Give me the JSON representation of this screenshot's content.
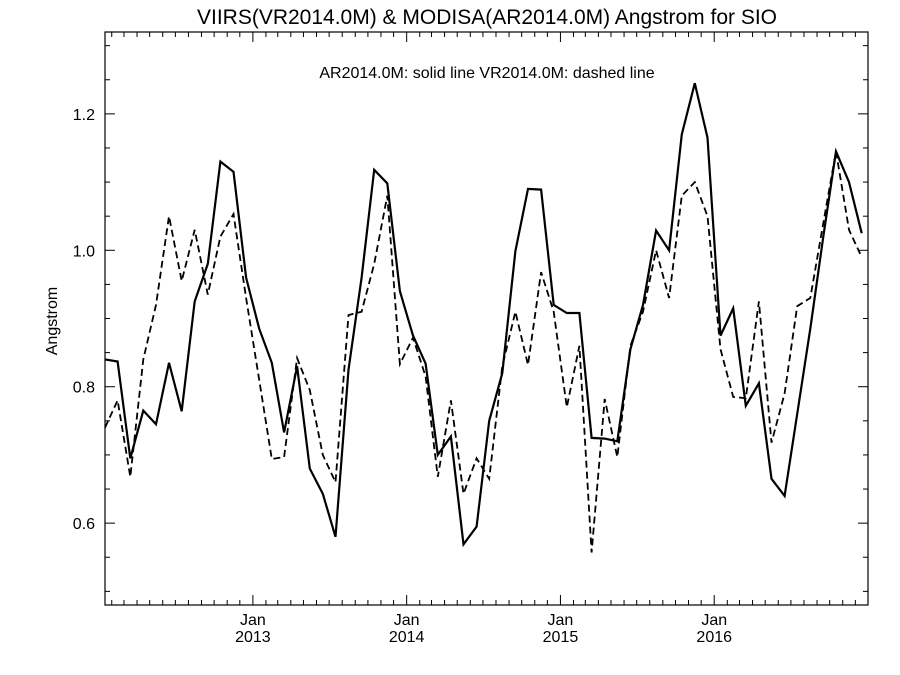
{
  "chart_data": {
    "type": "line",
    "title": "VIIRS(VR2014.0M) & MODISA(AR2014.0M)  Angstrom for SIO",
    "subtitle": "AR2014.0M: solid line   VR2014.0M: dashed line",
    "ylabel": "Angstrom",
    "xlabel": "",
    "xlim": [
      "2012-01-16",
      "2016-12-31"
    ],
    "ylim": [
      0.48,
      1.32
    ],
    "y_ticks": [
      0.6,
      0.8,
      1.0,
      1.2
    ],
    "y_tick_labels": [
      "0.6",
      "0.8",
      "1.0",
      "1.2"
    ],
    "x_ticks": [
      {
        "date": "2013-01-01",
        "month": "Jan",
        "year": "2013"
      },
      {
        "date": "2014-01-01",
        "month": "Jan",
        "year": "2014"
      },
      {
        "date": "2015-01-01",
        "month": "Jan",
        "year": "2015"
      },
      {
        "date": "2016-01-01",
        "month": "Jan",
        "year": "2016"
      }
    ],
    "grid": false,
    "series": [
      {
        "name": "AR2014.0M",
        "style": "solid",
        "color": "#000000",
        "x": [
          "2012-01-16",
          "2012-02-15",
          "2012-03-16",
          "2012-04-16",
          "2012-05-16",
          "2012-06-16",
          "2012-07-16",
          "2012-08-16",
          "2012-09-16",
          "2012-10-16",
          "2012-11-16",
          "2012-12-16",
          "2013-01-16",
          "2013-02-15",
          "2013-03-16",
          "2013-04-16",
          "2013-05-16",
          "2013-06-16",
          "2013-07-16",
          "2013-08-16",
          "2013-09-16",
          "2013-10-16",
          "2013-11-16",
          "2013-12-16",
          "2014-01-16",
          "2014-02-15",
          "2014-03-16",
          "2014-04-16",
          "2014-05-16",
          "2014-06-16",
          "2014-07-16",
          "2014-08-16",
          "2014-09-16",
          "2014-10-16",
          "2014-11-16",
          "2014-12-16",
          "2015-01-16",
          "2015-02-15",
          "2015-03-16",
          "2015-04-16",
          "2015-05-16",
          "2015-06-16",
          "2015-07-16",
          "2015-08-16",
          "2015-09-16",
          "2015-10-16",
          "2015-11-16",
          "2015-12-16",
          "2016-01-16",
          "2016-02-15",
          "2016-03-16",
          "2016-04-16",
          "2016-05-16",
          "2016-06-16",
          "2016-07-16",
          "2016-08-16",
          "2016-09-16",
          "2016-10-16",
          "2016-11-16",
          "2016-12-16"
        ],
        "values": [
          0.84,
          0.837,
          0.695,
          0.765,
          0.745,
          0.835,
          0.764,
          0.925,
          0.98,
          1.13,
          1.115,
          0.96,
          0.885,
          0.835,
          0.733,
          0.83,
          0.68,
          0.643,
          0.58,
          0.825,
          0.96,
          1.118,
          1.098,
          0.94,
          0.875,
          0.834,
          0.7,
          0.727,
          0.569,
          0.595,
          0.75,
          0.82,
          0.999,
          1.09,
          1.089,
          0.92,
          0.908,
          0.908,
          0.725,
          0.724,
          0.72,
          0.855,
          0.92,
          1.029,
          1.0,
          1.17,
          1.245,
          1.165,
          0.875,
          0.915,
          0.772,
          0.805,
          0.665,
          0.64,
          0.76,
          0.885,
          1.02,
          1.145,
          1.1,
          1.025
        ]
      },
      {
        "name": "VR2014.0M",
        "style": "dashed",
        "color": "#000000",
        "x": [
          "2012-01-16",
          "2012-02-15",
          "2012-03-16",
          "2012-04-16",
          "2012-05-16",
          "2012-06-16",
          "2012-07-16",
          "2012-08-16",
          "2012-09-16",
          "2012-10-16",
          "2012-11-16",
          "2012-12-16",
          "2013-01-16",
          "2013-02-15",
          "2013-03-16",
          "2013-04-16",
          "2013-05-16",
          "2013-06-16",
          "2013-07-16",
          "2013-08-16",
          "2013-09-16",
          "2013-10-16",
          "2013-11-16",
          "2013-12-16",
          "2014-01-16",
          "2014-02-15",
          "2014-03-16",
          "2014-04-16",
          "2014-05-16",
          "2014-06-16",
          "2014-07-16",
          "2014-08-16",
          "2014-09-16",
          "2014-10-16",
          "2014-11-16",
          "2014-12-16",
          "2015-01-16",
          "2015-02-15",
          "2015-03-16",
          "2015-04-16",
          "2015-05-16",
          "2015-06-16",
          "2015-07-16",
          "2015-08-16",
          "2015-09-16",
          "2015-10-16",
          "2015-11-16",
          "2015-12-16",
          "2016-01-16",
          "2016-02-15",
          "2016-03-16",
          "2016-04-16",
          "2016-05-16",
          "2016-06-16",
          "2016-07-16",
          "2016-08-16",
          "2016-09-16",
          "2016-10-16",
          "2016-11-16",
          "2016-12-16"
        ],
        "values": [
          0.74,
          0.78,
          0.668,
          0.84,
          0.92,
          1.05,
          0.955,
          1.03,
          0.935,
          1.02,
          1.053,
          0.93,
          0.81,
          0.694,
          0.697,
          0.842,
          0.795,
          0.7,
          0.66,
          0.905,
          0.91,
          0.98,
          1.08,
          0.833,
          0.872,
          0.815,
          0.668,
          0.78,
          0.643,
          0.695,
          0.665,
          0.83,
          0.91,
          0.832,
          0.968,
          0.91,
          0.77,
          0.86,
          0.557,
          0.782,
          0.697,
          0.86,
          0.91,
          1.0,
          0.93,
          1.08,
          1.1,
          1.05,
          0.855,
          0.785,
          0.783,
          0.925,
          0.718,
          0.79,
          0.918,
          0.93,
          1.04,
          1.145,
          1.03,
          0.99
        ]
      }
    ]
  }
}
